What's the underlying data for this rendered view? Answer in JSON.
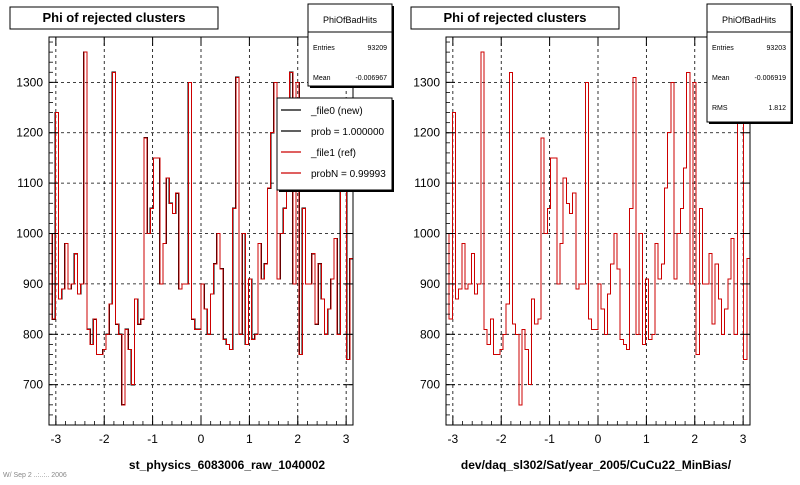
{
  "colors": {
    "background": "#ffffff",
    "frame": "#000000",
    "grid": "#000000",
    "new_line": "#000000",
    "ref_line": "#cc0000"
  },
  "footer_text": "W/ Sep  2 ..:..:.. 2006",
  "chart_data": [
    {
      "type": "line",
      "title": "Phi of rejected clusters",
      "xlabel": "st_physics_6083006_raw_1040002",
      "ylabel": "",
      "xlim": [
        -3.1416,
        3.1416
      ],
      "ylim": [
        620,
        1390
      ],
      "grid": true,
      "x_ticks": [
        -3,
        -2,
        -1,
        0,
        1,
        2,
        3
      ],
      "y_ticks": [
        700,
        800,
        900,
        1000,
        1100,
        1200,
        1300
      ],
      "stats_box": {
        "title": "PhiOfBadHits",
        "rows": [
          {
            "label": "Entries",
            "value": "93209"
          },
          {
            "label": "Mean",
            "value": "-0.006967"
          }
        ]
      },
      "legend": {
        "position": "top-right",
        "entries": [
          {
            "label": "_file0 (new)",
            "color": "#000000"
          },
          {
            "label": "prob = 1.000000",
            "color": "#000000"
          },
          {
            "label": "_file1 (ref)",
            "color": "#cc0000"
          },
          {
            "label": "probN = 0.99993",
            "color": "#cc0000"
          }
        ]
      },
      "series": [
        {
          "name": "_file0 (new)",
          "color": "#000000",
          "values": "shared"
        },
        {
          "name": "_file1 (ref)",
          "color": "#cc0000",
          "values": "shared"
        }
      ],
      "bins": {
        "x_start": -3.1416,
        "x_end": 3.1416,
        "values": [
          1000,
          830,
          1240,
          870,
          890,
          980,
          890,
          900,
          960,
          880,
          900,
          1360,
          810,
          780,
          830,
          760,
          760,
          770,
          800,
          860,
          1320,
          820,
          800,
          660,
          810,
          770,
          700,
          870,
          820,
          830,
          1190,
          1000,
          1050,
          1150,
          1150,
          900,
          980,
          1110,
          1060,
          1040,
          1080,
          890,
          900,
          900,
          1300,
          830,
          810,
          810,
          900,
          850,
          800,
          880,
          940,
          1000,
          930,
          790,
          780,
          770,
          1050,
          1310,
          800,
          1000,
          780,
          910,
          790,
          800,
          980,
          910,
          940,
          1090,
          1200,
          1300,
          910,
          1000,
          1050,
          1130,
          1320,
          900,
          1300,
          760,
          1050,
          900,
          900,
          960,
          820,
          940,
          870,
          800,
          850,
          910,
          990,
          800,
          1250,
          1260,
          750,
          950
        ]
      }
    },
    {
      "type": "line",
      "title": "Phi of rejected clusters",
      "xlabel": "dev/daq_sl302/Sat/year_2005/CuCu22_MinBias/",
      "ylabel": "",
      "xlim": [
        -3.1416,
        3.1416
      ],
      "ylim": [
        620,
        1390
      ],
      "grid": true,
      "x_ticks": [
        -3,
        -2,
        -1,
        0,
        1,
        2,
        3
      ],
      "y_ticks": [
        700,
        800,
        900,
        1000,
        1100,
        1200,
        1300
      ],
      "stats_box": {
        "title": "PhiOfBadHits",
        "rows": [
          {
            "label": "Entries",
            "value": "93203"
          },
          {
            "label": "Mean",
            "value": "-0.006919"
          },
          {
            "label": "RMS",
            "value": "1.812"
          }
        ]
      },
      "series": [
        {
          "name": "",
          "color": "#cc0000",
          "values": "shared"
        }
      ],
      "bins": {
        "x_start": -3.1416,
        "x_end": 3.1416,
        "values": [
          1000,
          830,
          1240,
          870,
          890,
          980,
          890,
          900,
          960,
          880,
          900,
          1360,
          810,
          780,
          830,
          760,
          760,
          770,
          800,
          860,
          1320,
          820,
          800,
          660,
          810,
          770,
          700,
          870,
          820,
          830,
          1190,
          1000,
          1050,
          1150,
          1150,
          900,
          980,
          1110,
          1060,
          1040,
          1080,
          890,
          900,
          900,
          1300,
          830,
          810,
          810,
          900,
          850,
          800,
          880,
          940,
          1000,
          930,
          790,
          780,
          770,
          1050,
          1310,
          800,
          1000,
          780,
          910,
          790,
          800,
          980,
          910,
          940,
          1090,
          1200,
          1300,
          910,
          1000,
          1050,
          1130,
          1320,
          900,
          1300,
          760,
          1050,
          900,
          900,
          960,
          820,
          940,
          870,
          800,
          850,
          910,
          990,
          800,
          1250,
          1260,
          750,
          950
        ]
      }
    }
  ]
}
